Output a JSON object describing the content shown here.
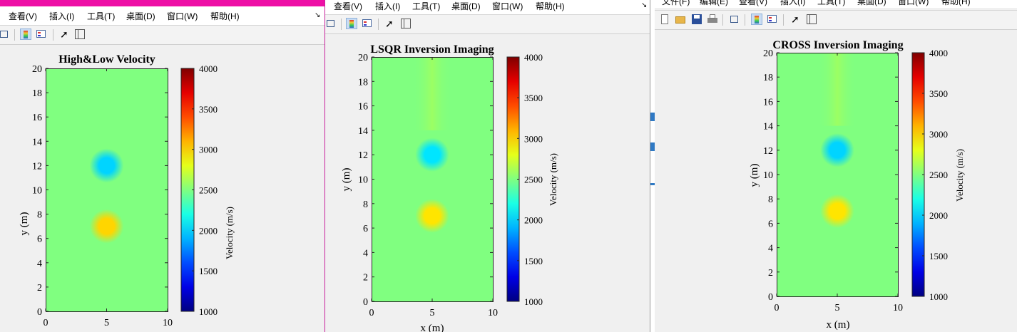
{
  "windows": [
    {
      "menu": [
        "查看(V)",
        "插入(I)",
        "工具(T)",
        "桌面(D)",
        "窗口(W)",
        "帮助(H)"
      ],
      "title": "High&Low Velocity",
      "ylabel": "y (m)",
      "xlabel": "",
      "cbar_label": "Velocity (m/s)"
    },
    {
      "menu": [
        "查看(V)",
        "插入(I)",
        "工具(T)",
        "桌面(D)",
        "窗口(W)",
        "帮助(H)"
      ],
      "title": "LSQR Inversion Imaging",
      "ylabel": "y (m)",
      "xlabel": "x (m)",
      "cbar_label": "Velocity (m/s)"
    },
    {
      "menu": [
        "文件(F)",
        "编辑(E)",
        "查看(V)",
        "插入(I)",
        "工具(T)",
        "桌面(D)",
        "窗口(W)",
        "帮助(H)"
      ],
      "title": "CROSS Inversion Imaging",
      "ylabel": "y (m)",
      "xlabel": "x (m)",
      "cbar_label": "Velocity (m/s)"
    }
  ],
  "chart_data": [
    {
      "type": "heatmap",
      "title": "High&Low Velocity",
      "xlabel": "",
      "ylabel": "y (m)",
      "xlim": [
        0,
        10
      ],
      "ylim": [
        0,
        20
      ],
      "x_ticks": [
        0,
        5,
        10
      ],
      "y_ticks": [
        0,
        2,
        4,
        6,
        8,
        10,
        12,
        14,
        16,
        18,
        20
      ],
      "colorbar": {
        "label": "Velocity (m/s)",
        "range": [
          1000,
          4000
        ],
        "ticks": [
          1000,
          1500,
          2000,
          2500,
          3000,
          3500,
          4000
        ],
        "colormap": "jet"
      },
      "background_velocity": 2500,
      "anomalies": [
        {
          "x": 5,
          "y": 12,
          "velocity": 2000
        },
        {
          "x": 5,
          "y": 7,
          "velocity": 3000
        }
      ]
    },
    {
      "type": "heatmap",
      "title": "LSQR Inversion Imaging",
      "xlabel": "x (m)",
      "ylabel": "y (m)",
      "xlim": [
        0,
        10
      ],
      "ylim": [
        0,
        20
      ],
      "x_ticks": [
        0,
        5,
        10
      ],
      "y_ticks": [
        0,
        2,
        4,
        6,
        8,
        10,
        12,
        14,
        16,
        18,
        20
      ],
      "colorbar": {
        "label": "Velocity (m/s)",
        "range": [
          1000,
          4000
        ],
        "ticks": [
          1000,
          1500,
          2000,
          2500,
          3000,
          3500,
          4000
        ],
        "colormap": "jet"
      },
      "background_velocity": 2500,
      "anomalies": [
        {
          "x": 5,
          "y": 12,
          "velocity": 2050
        },
        {
          "x": 5,
          "y": 7,
          "velocity": 2950
        }
      ]
    },
    {
      "type": "heatmap",
      "title": "CROSS Inversion Imaging",
      "xlabel": "x (m)",
      "ylabel": "y (m)",
      "xlim": [
        0,
        10
      ],
      "ylim": [
        0,
        20
      ],
      "x_ticks": [
        0,
        5,
        10
      ],
      "y_ticks": [
        0,
        2,
        4,
        6,
        8,
        10,
        12,
        14,
        16,
        18,
        20
      ],
      "colorbar": {
        "label": "Velocity (m/s)",
        "range": [
          1000,
          4000
        ],
        "ticks": [
          1000,
          1500,
          2000,
          2500,
          3000,
          3500,
          4000
        ],
        "colormap": "jet"
      },
      "background_velocity": 2500,
      "anomalies": [
        {
          "x": 5,
          "y": 12,
          "velocity": 2000
        },
        {
          "x": 5,
          "y": 7,
          "velocity": 2950
        }
      ]
    }
  ]
}
